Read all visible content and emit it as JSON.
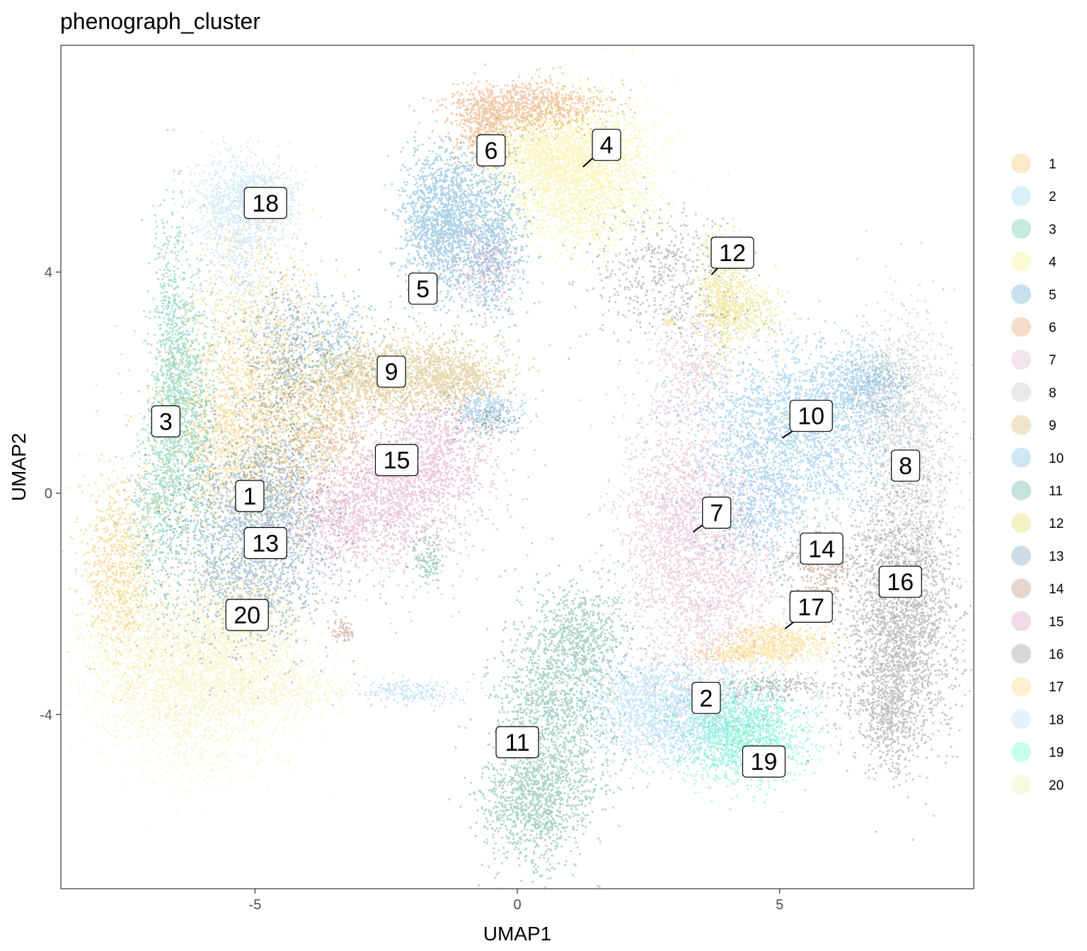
{
  "chart_data": {
    "type": "scatter",
    "title": "phenograph_cluster",
    "xlabel": "UMAP1",
    "ylabel": "UMAP2",
    "xlim": [
      -8.7,
      8.7
    ],
    "ylim": [
      -7.15,
      8.1
    ],
    "xticks": [
      {
        "value": -5,
        "label": "-5"
      },
      {
        "value": 0,
        "label": "0"
      },
      {
        "value": 5,
        "label": "5"
      }
    ],
    "yticks": [
      {
        "value": -4,
        "label": "-4"
      },
      {
        "value": 0,
        "label": "0"
      },
      {
        "value": 4,
        "label": "4"
      }
    ],
    "grid": false,
    "legend_position": "right",
    "clusters": [
      {
        "name": "1",
        "color": "#E69F00",
        "label_x": -5.1,
        "label_y": -0.05,
        "anchor_x": -5.1,
        "anchor_y": -0.05,
        "blobs": [
          [
            -5.2,
            1.0,
            0.9,
            0.9,
            1800
          ],
          [
            -7.6,
            -1.3,
            0.35,
            0.8,
            700
          ],
          [
            -4.9,
            2.9,
            0.7,
            0.9,
            700
          ]
        ]
      },
      {
        "name": "2",
        "color": "#56B4E9",
        "label_x": 3.6,
        "label_y": -3.7,
        "anchor_x": 3.6,
        "anchor_y": -3.7,
        "blobs": [
          [
            3.4,
            -4.1,
            1.0,
            0.45,
            1700
          ],
          [
            2.5,
            -3.6,
            0.6,
            0.35,
            500
          ],
          [
            -2.0,
            -3.6,
            0.5,
            0.12,
            200
          ]
        ]
      },
      {
        "name": "3",
        "color": "#009E73",
        "label_x": -6.7,
        "label_y": 1.3,
        "anchor_x": -6.7,
        "anchor_y": 1.3,
        "blobs": [
          [
            -6.6,
            2.0,
            0.18,
            1.6,
            900
          ],
          [
            -6.2,
            1.5,
            0.25,
            1.3,
            700
          ],
          [
            -6.9,
            -0.2,
            0.25,
            0.9,
            400
          ]
        ]
      },
      {
        "name": "4",
        "color": "#F0E442",
        "label_x": 1.7,
        "label_y": 6.3,
        "anchor_x": 1.25,
        "anchor_y": 5.9,
        "blobs": [
          [
            1.2,
            5.8,
            0.7,
            0.65,
            2200
          ],
          [
            0.4,
            6.2,
            0.5,
            0.4,
            600
          ]
        ]
      },
      {
        "name": "5",
        "color": "#0072B2",
        "label_x": -1.8,
        "label_y": 3.7,
        "anchor_x": -1.8,
        "anchor_y": 3.7,
        "blobs": [
          [
            -1.4,
            4.9,
            0.4,
            0.65,
            1600
          ],
          [
            -0.4,
            4.6,
            0.28,
            0.75,
            700
          ],
          [
            -3.5,
            2.8,
            0.5,
            0.5,
            300
          ]
        ]
      },
      {
        "name": "6",
        "color": "#D55E00",
        "label_x": -0.5,
        "label_y": 6.2,
        "anchor_x": -0.5,
        "anchor_y": 6.2,
        "blobs": [
          [
            0.2,
            7.0,
            0.75,
            0.22,
            900
          ],
          [
            -0.6,
            6.6,
            0.3,
            0.3,
            400
          ]
        ]
      },
      {
        "name": "7",
        "color": "#CC79A7",
        "label_x": 3.8,
        "label_y": -0.35,
        "anchor_x": 3.35,
        "anchor_y": -0.7,
        "blobs": [
          [
            3.6,
            -1.3,
            0.7,
            1.2,
            2000
          ],
          [
            2.9,
            -0.2,
            0.5,
            0.9,
            700
          ],
          [
            3.3,
            2.3,
            0.4,
            0.6,
            400
          ],
          [
            -0.6,
            4.1,
            0.3,
            0.35,
            300
          ]
        ]
      },
      {
        "name": "8",
        "color": "#999999",
        "label_x": 7.4,
        "label_y": 0.5,
        "anchor_x": 7.4,
        "anchor_y": 0.5,
        "blobs": [
          [
            7.5,
            0.3,
            0.4,
            1.4,
            1400
          ],
          [
            6.9,
            1.8,
            0.3,
            0.5,
            400
          ]
        ]
      },
      {
        "name": "9",
        "color": "#B8860B",
        "label_x": -2.4,
        "label_y": 2.2,
        "anchor_x": -2.4,
        "anchor_y": 2.2,
        "blobs": [
          [
            -2.4,
            2.1,
            1.0,
            0.35,
            1700
          ],
          [
            -1.1,
            2.1,
            0.4,
            0.25,
            400
          ],
          [
            -3.7,
            1.2,
            0.45,
            0.5,
            500
          ]
        ]
      },
      {
        "name": "10",
        "color": "#1F8FD6",
        "label_x": 5.6,
        "label_y": 1.4,
        "anchor_x": 5.05,
        "anchor_y": 1.0,
        "blobs": [
          [
            5.4,
            1.1,
            1.0,
            0.8,
            2300
          ],
          [
            6.6,
            2.0,
            0.45,
            0.3,
            500
          ],
          [
            4.5,
            -0.3,
            0.5,
            0.5,
            500
          ],
          [
            -0.6,
            1.5,
            0.35,
            0.2,
            300
          ]
        ]
      },
      {
        "name": "11",
        "color": "#007A5E",
        "label_x": 0.0,
        "label_y": -4.5,
        "anchor_x": 0.0,
        "anchor_y": -4.5,
        "blobs": [
          [
            0.7,
            -4.0,
            0.55,
            1.0,
            1500
          ],
          [
            0.3,
            -5.6,
            0.5,
            0.55,
            900
          ],
          [
            1.3,
            -2.6,
            0.45,
            0.45,
            500
          ],
          [
            -1.7,
            -1.2,
            0.15,
            0.25,
            120
          ]
        ]
      },
      {
        "name": "12",
        "color": "#D4C300",
        "label_x": 4.1,
        "label_y": 4.35,
        "anchor_x": 3.7,
        "anchor_y": 3.95,
        "blobs": [
          [
            3.9,
            3.6,
            0.22,
            0.55,
            600
          ],
          [
            4.4,
            3.3,
            0.3,
            0.25,
            250
          ]
        ]
      },
      {
        "name": "13",
        "color": "#155A8A",
        "label_x": -4.8,
        "label_y": -0.9,
        "anchor_x": -4.8,
        "anchor_y": -0.9,
        "blobs": [
          [
            -5.1,
            -1.0,
            0.75,
            0.9,
            2000
          ],
          [
            -4.6,
            0.0,
            0.45,
            0.6,
            600
          ],
          [
            -4.4,
            2.4,
            0.4,
            0.7,
            500
          ]
        ]
      },
      {
        "name": "14",
        "color": "#8B4513",
        "label_x": 5.8,
        "label_y": -1.0,
        "anchor_x": 5.8,
        "anchor_y": -1.0,
        "blobs": [
          [
            5.8,
            -1.3,
            0.4,
            0.35,
            300
          ],
          [
            -3.3,
            -2.5,
            0.12,
            0.12,
            60
          ]
        ]
      },
      {
        "name": "15",
        "color": "#C0589B",
        "label_x": -2.3,
        "label_y": 0.6,
        "anchor_x": -2.3,
        "anchor_y": 0.6,
        "blobs": [
          [
            -2.4,
            0.0,
            0.85,
            0.7,
            1700
          ],
          [
            -1.5,
            0.8,
            0.5,
            0.45,
            500
          ],
          [
            -3.4,
            -0.6,
            0.4,
            0.45,
            300
          ]
        ]
      },
      {
        "name": "16",
        "color": "#4D4D4D",
        "label_x": 7.3,
        "label_y": -1.6,
        "anchor_x": 7.3,
        "anchor_y": -1.6,
        "blobs": [
          [
            7.3,
            -2.4,
            0.55,
            1.1,
            2300
          ],
          [
            7.1,
            -4.0,
            0.25,
            0.5,
            400
          ],
          [
            5.0,
            -3.5,
            0.6,
            0.12,
            200
          ],
          [
            2.8,
            4.0,
            0.7,
            0.55,
            500
          ],
          [
            -0.5,
            1.3,
            0.25,
            0.15,
            80
          ]
        ]
      },
      {
        "name": "17",
        "color": "#F9B81F",
        "label_x": 5.6,
        "label_y": -2.05,
        "anchor_x": 5.1,
        "anchor_y": -2.45,
        "blobs": [
          [
            5.0,
            -2.7,
            0.5,
            0.18,
            600
          ],
          [
            4.2,
            -2.9,
            0.4,
            0.08,
            200
          ],
          [
            2.9,
            3.1,
            0.06,
            0.06,
            30
          ]
        ]
      },
      {
        "name": "18",
        "color": "#88C4EB",
        "label_x": -4.8,
        "label_y": 5.25,
        "anchor_x": -4.8,
        "anchor_y": 5.25,
        "blobs": [
          [
            -5.2,
            5.3,
            0.5,
            0.4,
            800
          ],
          [
            -5.3,
            4.5,
            0.4,
            0.6,
            400
          ]
        ]
      },
      {
        "name": "19",
        "color": "#00F5A0",
        "label_x": 4.7,
        "label_y": -4.85,
        "anchor_x": 4.7,
        "anchor_y": -4.85,
        "blobs": [
          [
            4.3,
            -4.4,
            0.6,
            0.4,
            1300
          ]
        ]
      },
      {
        "name": "20",
        "color": "#EEE070",
        "label_x": -5.15,
        "label_y": -2.2,
        "anchor_x": -5.15,
        "anchor_y": -2.2,
        "blobs": [
          [
            -6.1,
            -3.3,
            0.9,
            0.75,
            2300
          ],
          [
            -5.3,
            -2.3,
            0.6,
            0.5,
            700
          ],
          [
            -7.4,
            -2.3,
            0.4,
            0.6,
            500
          ],
          [
            -4.3,
            -3.5,
            0.6,
            0.25,
            300
          ]
        ]
      }
    ]
  }
}
